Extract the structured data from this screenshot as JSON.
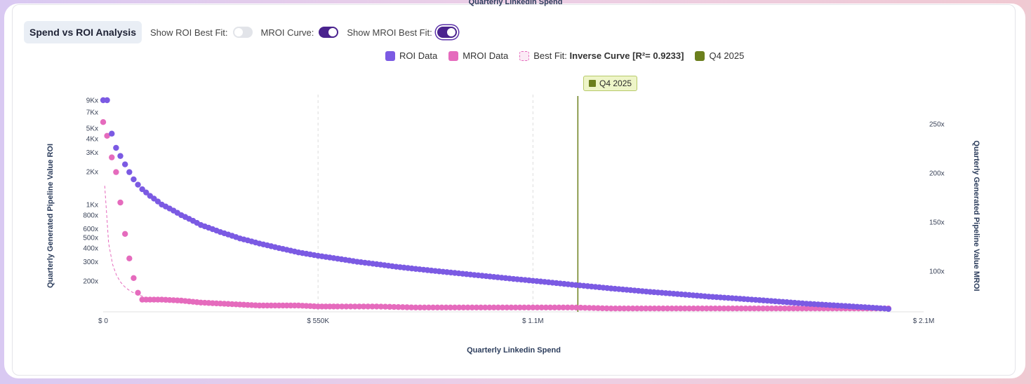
{
  "top_title": "Quarterly Linkedin Spend",
  "controls": {
    "section_title": "Spend vs ROI Analysis",
    "roi_best_fit": {
      "label": "Show ROI Best Fit:",
      "on": false
    },
    "mroi_curve": {
      "label": "MROI Curve:",
      "on": true
    },
    "mroi_best_fit": {
      "label": "Show MROI Best Fit:",
      "on": true
    }
  },
  "legend": {
    "roi": "ROI Data",
    "mroi": "MROI Data",
    "best_fit_prefix": "Best Fit:",
    "best_fit_value": "Inverse Curve [R²= 0.9233]",
    "q4": "Q4 2025"
  },
  "marker_badge": "Q4 2025",
  "colors": {
    "roi": "#7b5ae3",
    "mroi": "#e56bbd",
    "fit": "#e56bbd",
    "q4": "#6b7f1d"
  },
  "chart_data": {
    "type": "scatter",
    "xlabel": "Quarterly Linkedin Spend",
    "ylabel_left": "Quarterly Generated Pipeline Value ROI",
    "ylabel_right": "Quarterly Generated Pipeline Value MROI",
    "x_ticks": [
      {
        "value": 0,
        "label": "$ 0"
      },
      {
        "value": 550000,
        "label": "$ 550K"
      },
      {
        "value": 1100000,
        "label": "$ 1.1M"
      },
      {
        "value": 2100000,
        "label": "$ 2.1M"
      }
    ],
    "xlim": [
      0,
      2100000
    ],
    "y_left_scale": "log",
    "y_left_ticks": [
      {
        "value": 9000,
        "label": "9Kx"
      },
      {
        "value": 7000,
        "label": "7Kx"
      },
      {
        "value": 5000,
        "label": "5Kx"
      },
      {
        "value": 4000,
        "label": "4Kx"
      },
      {
        "value": 3000,
        "label": "3Kx"
      },
      {
        "value": 2000,
        "label": "2Kx"
      },
      {
        "value": 1000,
        "label": "1Kx"
      },
      {
        "value": 800,
        "label": "800x"
      },
      {
        "value": 600,
        "label": "600x"
      },
      {
        "value": 500,
        "label": "500x"
      },
      {
        "value": 400,
        "label": "400x"
      },
      {
        "value": 300,
        "label": "300x"
      },
      {
        "value": 200,
        "label": "200x"
      }
    ],
    "y_right_ticks": [
      {
        "value": 250,
        "label": "250x"
      },
      {
        "value": 200,
        "label": "200x"
      },
      {
        "value": 150,
        "label": "150x"
      },
      {
        "value": 100,
        "label": "100x"
      }
    ],
    "y_right_lim": [
      57,
      274
    ],
    "marker": {
      "x": 1215000,
      "label": "Q4 2025"
    },
    "series": [
      {
        "name": "ROI Data",
        "axis": "left",
        "points": [
          [
            0,
            9000
          ],
          [
            10000,
            9000
          ],
          [
            22000,
            4450
          ],
          [
            33000,
            3300
          ],
          [
            44000,
            2780
          ],
          [
            56000,
            2330
          ],
          [
            67000,
            1980
          ],
          [
            78000,
            1700
          ],
          [
            89000,
            1520
          ],
          [
            100000,
            1380
          ],
          [
            120000,
            1200
          ],
          [
            150000,
            1000
          ],
          [
            200000,
            800
          ],
          [
            250000,
            650
          ],
          [
            300000,
            560
          ],
          [
            350000,
            490
          ],
          [
            400000,
            440
          ],
          [
            450000,
            400
          ],
          [
            500000,
            365
          ],
          [
            550000,
            340
          ],
          [
            600000,
            320
          ],
          [
            650000,
            300
          ],
          [
            700000,
            285
          ],
          [
            750000,
            270
          ],
          [
            800000,
            258
          ],
          [
            850000,
            247
          ],
          [
            900000,
            237
          ],
          [
            950000,
            227
          ],
          [
            1000000,
            218
          ],
          [
            1050000,
            209
          ],
          [
            1100000,
            201
          ],
          [
            1150000,
            193
          ],
          [
            1200000,
            185
          ],
          [
            1250000,
            178
          ],
          [
            1300000,
            171
          ],
          [
            1350000,
            165
          ],
          [
            1400000,
            159
          ],
          [
            1450000,
            154
          ],
          [
            1500000,
            149
          ],
          [
            1550000,
            144
          ],
          [
            1600000,
            140
          ],
          [
            1650000,
            136
          ],
          [
            1700000,
            132
          ],
          [
            1750000,
            128
          ],
          [
            1800000,
            124
          ],
          [
            1850000,
            121
          ],
          [
            1900000,
            118
          ],
          [
            1950000,
            115
          ],
          [
            2000000,
            112
          ],
          [
            2010000,
            111
          ]
        ]
      },
      {
        "name": "MROI Data",
        "axis": "right",
        "points": [
          [
            0,
            252
          ],
          [
            10000,
            238
          ],
          [
            22000,
            216
          ],
          [
            33000,
            201
          ],
          [
            44000,
            170
          ],
          [
            56000,
            138
          ],
          [
            67000,
            113
          ],
          [
            78000,
            93
          ],
          [
            89000,
            78
          ],
          [
            100000,
            71
          ],
          [
            150000,
            71
          ],
          [
            200000,
            70
          ],
          [
            250000,
            68
          ],
          [
            300000,
            67
          ],
          [
            350000,
            66
          ],
          [
            400000,
            65
          ],
          [
            450000,
            65
          ],
          [
            500000,
            65
          ],
          [
            550000,
            64
          ],
          [
            600000,
            64
          ],
          [
            700000,
            64
          ],
          [
            800000,
            63
          ],
          [
            900000,
            63
          ],
          [
            1000000,
            63
          ],
          [
            1100000,
            63
          ],
          [
            1200000,
            63
          ],
          [
            1300000,
            62
          ],
          [
            1400000,
            62
          ],
          [
            1500000,
            62
          ],
          [
            1600000,
            62
          ],
          [
            1700000,
            62
          ],
          [
            1800000,
            62
          ],
          [
            1900000,
            62
          ],
          [
            2000000,
            62
          ],
          [
            2010000,
            62
          ]
        ]
      }
    ],
    "grid": {
      "vertical_dashed": true,
      "horizontal": false
    }
  }
}
